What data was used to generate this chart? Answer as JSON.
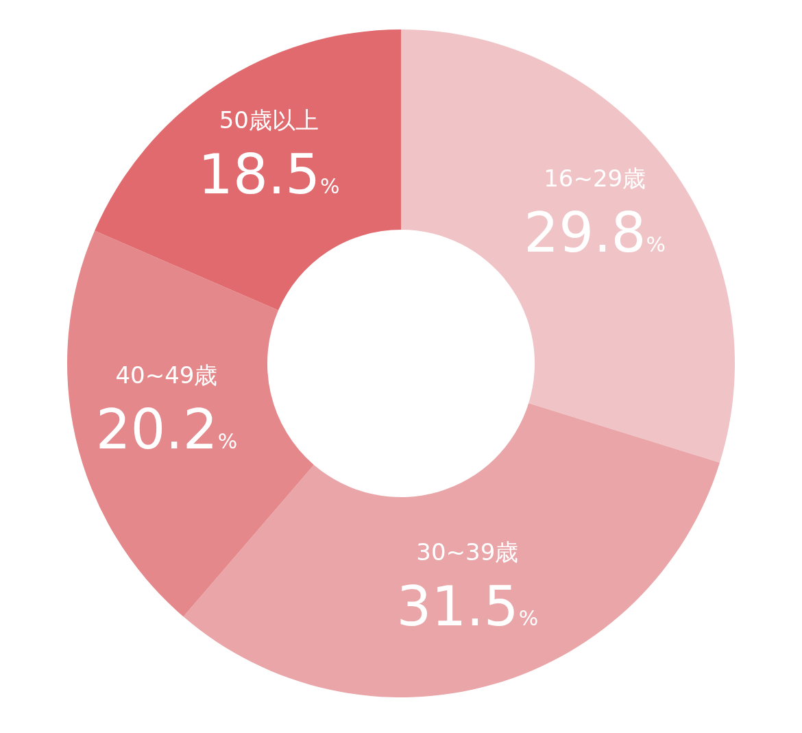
{
  "chart_data": {
    "type": "donut",
    "categories": [
      "16~29歳",
      "30~39歳",
      "40~49歳",
      "50歳以上"
    ],
    "values": [
      29.8,
      31.5,
      20.2,
      18.5
    ],
    "value_labels": [
      "29.8%",
      "31.5%",
      "20.2%",
      "18.5%"
    ],
    "colors": [
      "#f0c4c6",
      "#e9a5a8",
      "#e4888b",
      "#e06a6e"
    ]
  }
}
